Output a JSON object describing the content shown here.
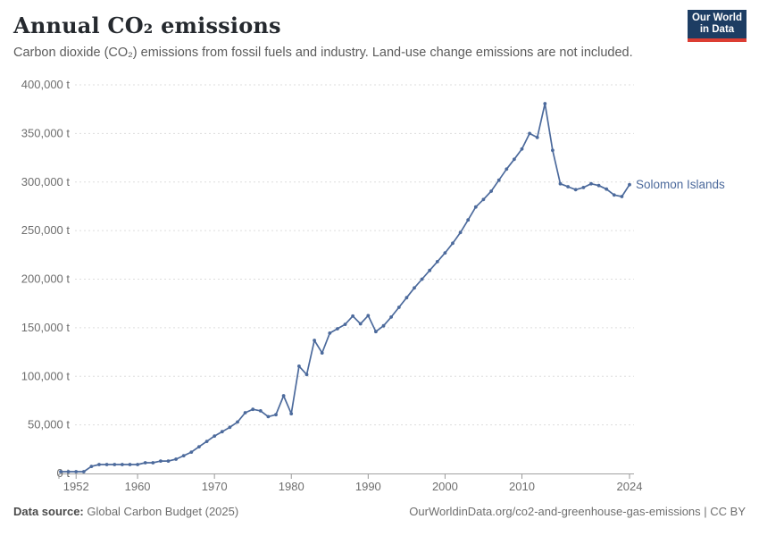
{
  "header": {
    "title": "Annual CO₂ emissions",
    "subtitle": "Carbon dioxide (CO₂) emissions from fossil fuels and industry. Land-use change emissions are not included.",
    "logo": {
      "line1": "Our World",
      "line2": "in Data"
    }
  },
  "chart_data": {
    "type": "line",
    "title": "Annual CO₂ emissions",
    "unit": "t",
    "xlabel": "",
    "ylabel": "",
    "xlim": [
      1950,
      2024
    ],
    "ylim": [
      0,
      400000
    ],
    "grid": "horizontal-dashed",
    "legend": "end-of-line-label",
    "x_ticks": [
      1952,
      1960,
      1970,
      1980,
      1990,
      2000,
      2010,
      2024
    ],
    "x_tick_labels": [
      "1952",
      "1960",
      "1970",
      "1980",
      "1990",
      "2000",
      "2010",
      "2024"
    ],
    "y_ticks": [
      0,
      50000,
      100000,
      150000,
      200000,
      250000,
      300000,
      350000,
      400000
    ],
    "y_tick_labels": [
      "0 t",
      "50,000 t",
      "100,000 t",
      "150,000 t",
      "200,000 t",
      "250,000 t",
      "300,000 t",
      "350,000 t",
      "400,000 t"
    ],
    "series": [
      {
        "name": "Solomon Islands",
        "color": "#4C6A9C",
        "x": [
          1950,
          1951,
          1952,
          1953,
          1954,
          1955,
          1956,
          1957,
          1958,
          1959,
          1960,
          1961,
          1962,
          1963,
          1964,
          1965,
          1966,
          1967,
          1968,
          1969,
          1970,
          1971,
          1972,
          1973,
          1974,
          1975,
          1976,
          1977,
          1978,
          1979,
          1980,
          1981,
          1982,
          1983,
          1984,
          1985,
          1986,
          1987,
          1988,
          1989,
          1990,
          1991,
          1992,
          1993,
          1994,
          1995,
          1996,
          1997,
          1998,
          1999,
          2000,
          2001,
          2002,
          2003,
          2004,
          2005,
          2006,
          2007,
          2008,
          2009,
          2010,
          2011,
          2012,
          2013,
          2014,
          2015,
          2016,
          2017,
          2018,
          2019,
          2020,
          2021,
          2022,
          2023,
          2024
        ],
        "values": [
          1800,
          1800,
          1800,
          1800,
          7300,
          9200,
          9200,
          9200,
          9200,
          9200,
          9200,
          11000,
          11000,
          12800,
          12800,
          14700,
          18300,
          22000,
          27500,
          33000,
          38500,
          43000,
          47500,
          53000,
          62500,
          66000,
          64500,
          58500,
          60500,
          80000,
          61500,
          110400,
          101800,
          137000,
          124000,
          144500,
          149000,
          153500,
          162000,
          154000,
          162500,
          146000,
          152000,
          161000,
          171000,
          181000,
          191000,
          200000,
          209000,
          218000,
          227000,
          237000,
          248000,
          261000,
          274300,
          282000,
          290600,
          301900,
          313300,
          323400,
          334000,
          350000,
          345800,
          380700,
          332600,
          298200,
          295200,
          292100,
          294300,
          298200,
          296400,
          292700,
          286600,
          285100,
          297300
        ]
      }
    ]
  },
  "theme": {
    "line_color": "#4C6A9C",
    "grid_color": "#dddddd",
    "axis_color": "#a1a1a1",
    "tick_color": "#999999",
    "tick_label_color": "#6e6e6e",
    "logo_bg": "#1d3d63",
    "logo_red": "#dc3d33"
  },
  "footer": {
    "source_label": "Data source:",
    "source_value": " Global Carbon Budget (2025)",
    "link": "OurWorldinData.org/co2-and-greenhouse-gas-emissions | CC BY"
  }
}
